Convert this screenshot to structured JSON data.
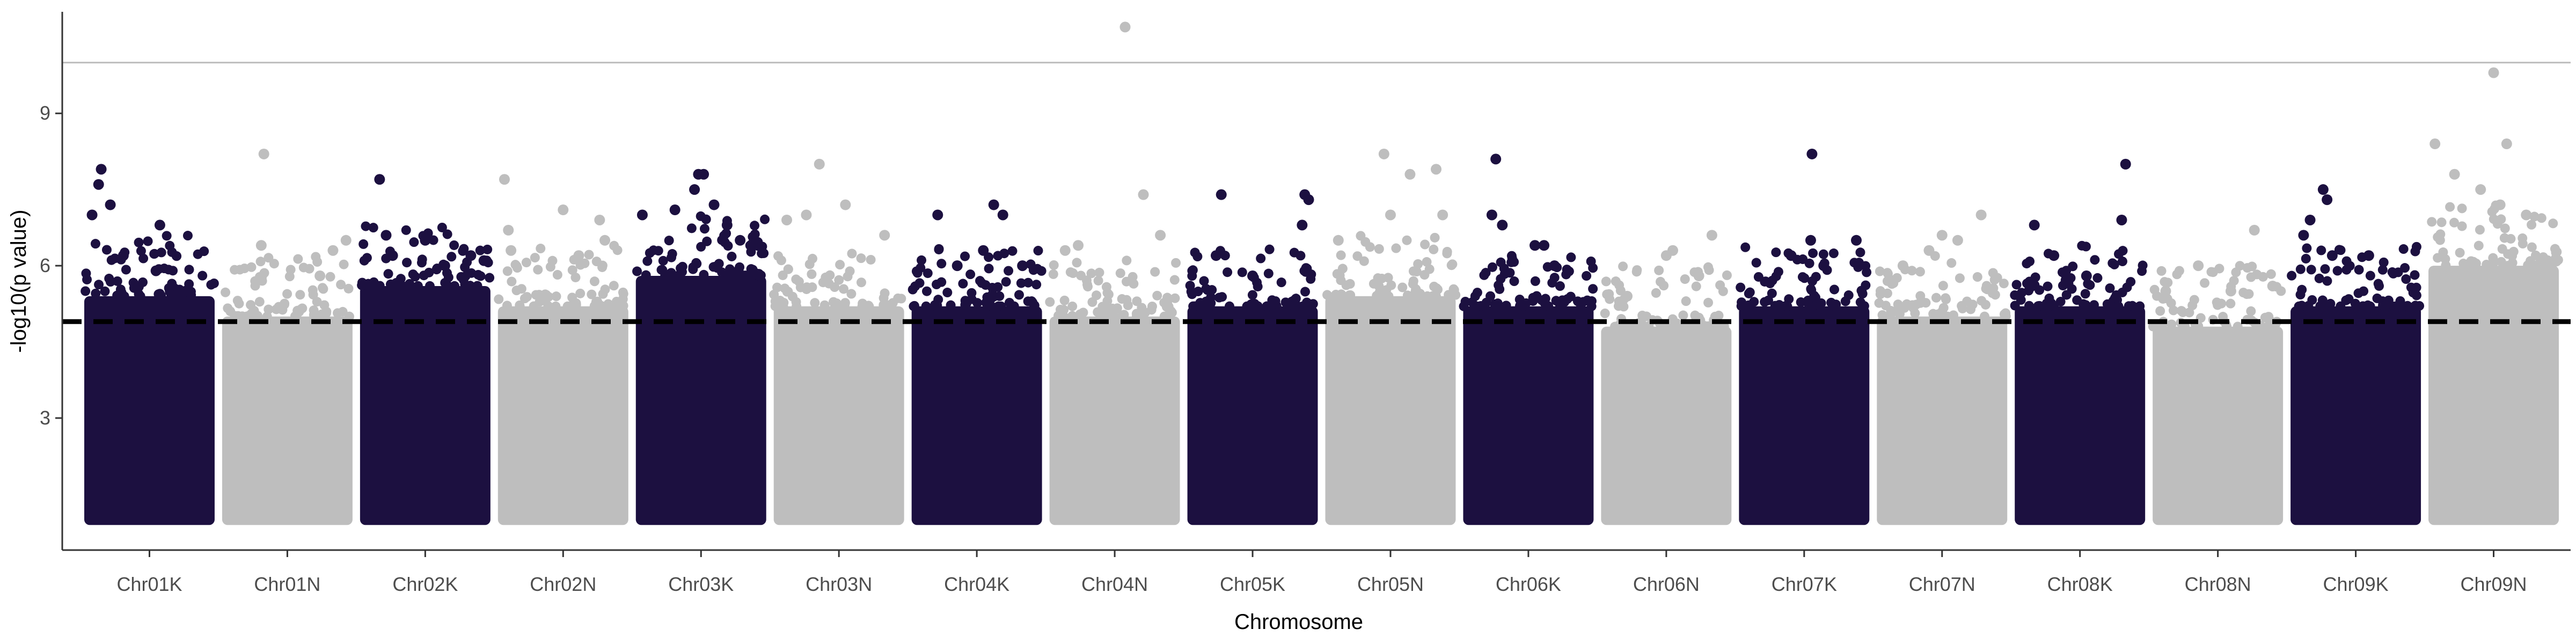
{
  "chart_data": {
    "type": "scatter",
    "title": "",
    "xlabel": "Chromosome",
    "ylabel": "-log10(p value)",
    "ylim": [
      0.4,
      11.0
    ],
    "yticks": [
      3,
      6,
      9
    ],
    "legend": "none",
    "grid": false,
    "significance_lines": [
      {
        "name": "suggestive",
        "y": 4.9,
        "style": "dashed",
        "color": "#000000"
      },
      {
        "name": "genome-wide",
        "y": 10.0,
        "style": "solid",
        "color": "#bdbdbd"
      }
    ],
    "colors": {
      "dark": "#1c1040",
      "light": "#bebebe"
    },
    "categories": [
      "Chr01K",
      "Chr01N",
      "Chr02K",
      "Chr02N",
      "Chr03K",
      "Chr03N",
      "Chr04K",
      "Chr04N",
      "Chr05K",
      "Chr05N",
      "Chr06K",
      "Chr06N",
      "Chr07K",
      "Chr07N",
      "Chr08K",
      "Chr08N",
      "Chr09K",
      "Chr09N"
    ],
    "series": [
      {
        "category": "Chr01K",
        "color": "dark",
        "min_y": 1.0,
        "typical_max": 5.4,
        "top_hits": [
          [
            0.06,
            7.0
          ],
          [
            0.11,
            7.6
          ],
          [
            0.13,
            7.9
          ],
          [
            0.2,
            7.2
          ],
          [
            0.3,
            6.2
          ],
          [
            0.55,
            5.9
          ],
          [
            0.58,
            6.8
          ],
          [
            0.78,
            5.5
          ]
        ]
      },
      {
        "category": "Chr01N",
        "color": "light",
        "min_y": 1.0,
        "typical_max": 5.0,
        "top_hits": [
          [
            0.32,
            8.2
          ],
          [
            0.3,
            6.4
          ],
          [
            0.75,
            5.8
          ],
          [
            0.85,
            6.3
          ],
          [
            0.95,
            6.5
          ]
        ]
      },
      {
        "category": "Chr02K",
        "color": "dark",
        "min_y": 1.0,
        "typical_max": 5.6,
        "top_hits": [
          [
            0.15,
            7.7
          ],
          [
            0.2,
            6.6
          ],
          [
            0.25,
            6.2
          ],
          [
            0.5,
            6.5
          ],
          [
            0.65,
            6.0
          ],
          [
            0.85,
            6.2
          ],
          [
            0.95,
            6.1
          ]
        ]
      },
      {
        "category": "Chr02N",
        "color": "light",
        "min_y": 1.0,
        "typical_max": 5.2,
        "top_hits": [
          [
            0.05,
            7.7
          ],
          [
            0.08,
            6.7
          ],
          [
            0.1,
            6.3
          ],
          [
            0.5,
            7.1
          ],
          [
            0.62,
            6.2
          ],
          [
            0.78,
            6.9
          ],
          [
            0.82,
            6.5
          ]
        ]
      },
      {
        "category": "Chr03K",
        "color": "dark",
        "min_y": 1.0,
        "typical_max": 5.8,
        "top_hits": [
          [
            0.05,
            7.0
          ],
          [
            0.3,
            7.1
          ],
          [
            0.45,
            7.5
          ],
          [
            0.48,
            7.8
          ],
          [
            0.52,
            7.8
          ],
          [
            0.6,
            7.2
          ],
          [
            0.7,
            6.8
          ],
          [
            0.8,
            6.5
          ]
        ]
      },
      {
        "category": "Chr03N",
        "color": "light",
        "min_y": 1.0,
        "typical_max": 5.2,
        "top_hits": [
          [
            0.1,
            6.9
          ],
          [
            0.25,
            7.0
          ],
          [
            0.35,
            8.0
          ],
          [
            0.55,
            7.2
          ],
          [
            0.85,
            6.6
          ]
        ]
      },
      {
        "category": "Chr04K",
        "color": "dark",
        "min_y": 1.0,
        "typical_max": 5.2,
        "top_hits": [
          [
            0.2,
            7.0
          ],
          [
            0.35,
            6.0
          ],
          [
            0.55,
            6.3
          ],
          [
            0.63,
            7.2
          ],
          [
            0.7,
            7.0
          ],
          [
            0.85,
            6.0
          ]
        ]
      },
      {
        "category": "Chr04N",
        "color": "light",
        "min_y": 1.0,
        "typical_max": 5.0,
        "top_hits": [
          [
            0.12,
            6.3
          ],
          [
            0.22,
            6.4
          ],
          [
            0.58,
            10.7
          ],
          [
            0.72,
            7.4
          ],
          [
            0.85,
            6.6
          ]
        ]
      },
      {
        "category": "Chr05K",
        "color": "dark",
        "min_y": 1.0,
        "typical_max": 5.2,
        "top_hits": [
          [
            0.22,
            6.2
          ],
          [
            0.26,
            7.4
          ],
          [
            0.5,
            5.8
          ],
          [
            0.9,
            7.4
          ],
          [
            0.93,
            7.3
          ],
          [
            0.88,
            6.8
          ]
        ]
      },
      {
        "category": "Chr05N",
        "color": "light",
        "min_y": 1.0,
        "typical_max": 5.4,
        "top_hits": [
          [
            0.1,
            6.5
          ],
          [
            0.45,
            8.2
          ],
          [
            0.5,
            7.0
          ],
          [
            0.65,
            7.8
          ],
          [
            0.85,
            7.9
          ],
          [
            0.9,
            7.0
          ]
        ]
      },
      {
        "category": "Chr06K",
        "color": "dark",
        "min_y": 1.0,
        "typical_max": 5.2,
        "top_hits": [
          [
            0.25,
            8.1
          ],
          [
            0.22,
            7.0
          ],
          [
            0.3,
            6.8
          ],
          [
            0.55,
            6.4
          ],
          [
            0.62,
            6.4
          ],
          [
            0.7,
            6.0
          ]
        ]
      },
      {
        "category": "Chr06N",
        "color": "light",
        "min_y": 1.0,
        "typical_max": 4.8,
        "top_hits": [
          [
            0.2,
            5.4
          ],
          [
            0.5,
            6.2
          ],
          [
            0.55,
            6.3
          ],
          [
            0.75,
            5.8
          ],
          [
            0.85,
            6.6
          ]
        ]
      },
      {
        "category": "Chr07K",
        "color": "dark",
        "min_y": 1.0,
        "typical_max": 5.2,
        "top_hits": [
          [
            0.4,
            6.2
          ],
          [
            0.56,
            8.2
          ],
          [
            0.55,
            6.5
          ],
          [
            0.65,
            6.0
          ],
          [
            0.9,
            6.5
          ]
        ]
      },
      {
        "category": "Chr07N",
        "color": "light",
        "min_y": 1.0,
        "typical_max": 5.0,
        "top_hits": [
          [
            0.2,
            6.0
          ],
          [
            0.4,
            6.3
          ],
          [
            0.5,
            6.6
          ],
          [
            0.62,
            6.5
          ],
          [
            0.8,
            7.0
          ]
        ]
      },
      {
        "category": "Chr08K",
        "color": "dark",
        "min_y": 1.0,
        "typical_max": 5.2,
        "top_hits": [
          [
            0.15,
            6.8
          ],
          [
            0.3,
            6.2
          ],
          [
            0.55,
            5.8
          ],
          [
            0.85,
            8.0
          ],
          [
            0.82,
            6.9
          ]
        ]
      },
      {
        "category": "Chr08N",
        "color": "light",
        "min_y": 1.0,
        "typical_max": 4.8,
        "top_hits": [
          [
            0.1,
            5.5
          ],
          [
            0.35,
            6.0
          ],
          [
            0.6,
            5.5
          ],
          [
            0.78,
            6.7
          ],
          [
            0.92,
            5.6
          ]
        ]
      },
      {
        "category": "Chr09K",
        "color": "dark",
        "min_y": 1.0,
        "typical_max": 5.2,
        "top_hits": [
          [
            0.1,
            6.6
          ],
          [
            0.15,
            6.9
          ],
          [
            0.25,
            7.5
          ],
          [
            0.28,
            7.3
          ],
          [
            0.32,
            6.2
          ],
          [
            0.6,
            6.2
          ]
        ]
      },
      {
        "category": "Chr09N",
        "color": "light",
        "min_y": 1.0,
        "typical_max": 6.0,
        "top_hits": [
          [
            0.05,
            8.4
          ],
          [
            0.2,
            7.8
          ],
          [
            0.4,
            7.5
          ],
          [
            0.5,
            9.8
          ],
          [
            0.6,
            8.4
          ],
          [
            0.55,
            7.2
          ],
          [
            0.75,
            7.0
          ]
        ]
      }
    ]
  }
}
